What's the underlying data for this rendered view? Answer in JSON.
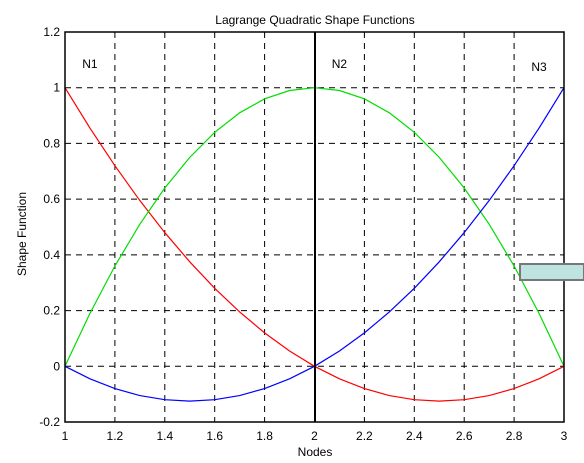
{
  "chart_data": {
    "type": "line",
    "title": "Lagrange Quadratic Shape Functions",
    "xlabel": "Nodes",
    "ylabel": "Shape Function",
    "xlim": [
      1,
      3
    ],
    "ylim": [
      -0.2,
      1.2
    ],
    "x_ticks": [
      "1",
      "1.2",
      "1.4",
      "1.6",
      "1.8",
      "2",
      "2.2",
      "2.4",
      "2.6",
      "2.8",
      "3"
    ],
    "y_ticks": [
      "-0.2",
      "0",
      "0.2",
      "0.4",
      "0.6",
      "0.8",
      "1",
      "1.2"
    ],
    "grid": true,
    "x": [
      1.0,
      1.1,
      1.2,
      1.3,
      1.4,
      1.5,
      1.6,
      1.7,
      1.8,
      1.9,
      2.0,
      2.1,
      2.2,
      2.3,
      2.4,
      2.5,
      2.6,
      2.7,
      2.8,
      2.9,
      3.0
    ],
    "series": [
      {
        "name": "N1",
        "color": "#ff0000",
        "values": [
          1.0,
          0.855,
          0.72,
          0.595,
          0.48,
          0.375,
          0.28,
          0.195,
          0.12,
          0.055,
          0.0,
          -0.045,
          -0.08,
          -0.105,
          -0.12,
          -0.125,
          -0.12,
          -0.105,
          -0.08,
          -0.045,
          0.0
        ]
      },
      {
        "name": "N2",
        "color": "#00dd00",
        "values": [
          0.0,
          0.19,
          0.36,
          0.51,
          0.64,
          0.75,
          0.84,
          0.91,
          0.96,
          0.99,
          1.0,
          0.99,
          0.96,
          0.91,
          0.84,
          0.75,
          0.64,
          0.51,
          0.36,
          0.19,
          0.0
        ]
      },
      {
        "name": "N3",
        "color": "#0000ff",
        "values": [
          0.0,
          -0.045,
          -0.08,
          -0.105,
          -0.12,
          -0.125,
          -0.12,
          -0.105,
          -0.08,
          -0.045,
          0.0,
          0.055,
          0.12,
          0.195,
          0.28,
          0.375,
          0.48,
          0.595,
          0.72,
          0.855,
          1.0
        ]
      }
    ],
    "curve_labels": [
      "N1",
      "N2",
      "N3"
    ]
  }
}
